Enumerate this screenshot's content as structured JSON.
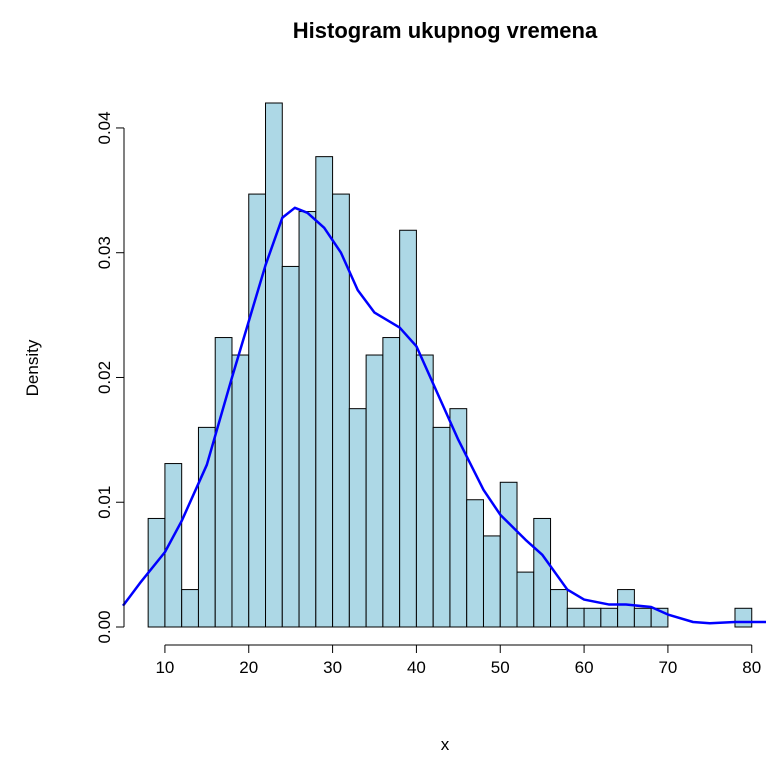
{
  "chart_data": {
    "type": "histogram",
    "title": "Histogram ukupnog vremena",
    "xlabel": "x",
    "ylabel": "Density",
    "bins": [
      8,
      10,
      12,
      14,
      16,
      18,
      20,
      22,
      24,
      26,
      28,
      30,
      32,
      34,
      36,
      38,
      40,
      42,
      44,
      46,
      48,
      50,
      52,
      54,
      56,
      58,
      60,
      62,
      64,
      66,
      68,
      70,
      72,
      74,
      76,
      78,
      80
    ],
    "values": [
      0.0087,
      0.0131,
      0.003,
      0.016,
      0.0232,
      0.0218,
      0.0347,
      0.042,
      0.0289,
      0.0333,
      0.0377,
      0.0347,
      0.0175,
      0.0218,
      0.0232,
      0.0318,
      0.0218,
      0.016,
      0.0175,
      0.0102,
      0.0073,
      0.0116,
      0.0044,
      0.0087,
      0.003,
      0.0015,
      0.0015,
      0.0015,
      0.003,
      0.0015,
      0.0015,
      0,
      0,
      0,
      0,
      0.0015
    ],
    "color": "#add8e6",
    "density": {
      "color": "#0000ff",
      "x": [
        5,
        7,
        10,
        12,
        15,
        18,
        20,
        22,
        24,
        25.5,
        27,
        29,
        31,
        33,
        35,
        38,
        40,
        42,
        45,
        48,
        50,
        53,
        55,
        58,
        60,
        63,
        65,
        68,
        70,
        73,
        75,
        78,
        81.7
      ],
      "y": [
        0.0017,
        0.0035,
        0.006,
        0.0085,
        0.013,
        0.02,
        0.0245,
        0.029,
        0.0328,
        0.0336,
        0.0332,
        0.032,
        0.03,
        0.027,
        0.0252,
        0.024,
        0.0225,
        0.0195,
        0.015,
        0.011,
        0.009,
        0.007,
        0.0058,
        0.003,
        0.0022,
        0.0018,
        0.0018,
        0.0016,
        0.001,
        0.0004,
        0.0003,
        0.0004,
        0.0004
      ]
    },
    "xlim": [
      5,
      81.7
    ],
    "ylim": [
      0,
      0.042
    ],
    "xticks": [
      10,
      20,
      30,
      40,
      50,
      60,
      70,
      80
    ],
    "yticks": [
      {
        "value": 0,
        "label": "0.00"
      },
      {
        "value": 0.01,
        "label": "0.01"
      },
      {
        "value": 0.02,
        "label": "0.02"
      },
      {
        "value": 0.03,
        "label": "0.03"
      },
      {
        "value": 0.04,
        "label": "0.04"
      }
    ]
  }
}
